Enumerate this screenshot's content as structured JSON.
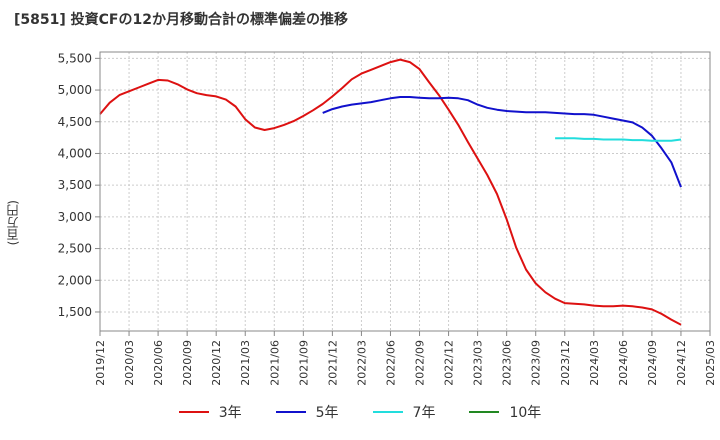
{
  "title": "[5851]  投資CFの12か月移動合計の標準偏差の推移",
  "ylabel": "(百万円)",
  "chart_data": {
    "type": "line",
    "ylim": [
      1200,
      5600
    ],
    "yticks": [
      1500,
      2000,
      2500,
      3000,
      3500,
      4000,
      4500,
      5000,
      5500
    ],
    "ytick_labels": [
      "1,500",
      "2,000",
      "2,500",
      "3,000",
      "3,500",
      "4,000",
      "4,500",
      "5,000",
      "5,500"
    ],
    "xticks": [
      "2019/12",
      "2020/03",
      "2020/06",
      "2020/09",
      "2020/12",
      "2021/03",
      "2021/06",
      "2021/09",
      "2021/12",
      "2022/03",
      "2022/06",
      "2022/09",
      "2022/12",
      "2023/03",
      "2023/06",
      "2023/09",
      "2023/12",
      "2024/03",
      "2024/06",
      "2024/09",
      "2024/12",
      "2025/03"
    ],
    "grid": true,
    "legend_position": "bottom",
    "series": [
      {
        "name": "3年",
        "color": "#dd1111",
        "values": [
          [
            "2019/12",
            4620
          ],
          [
            "2020/01",
            4800
          ],
          [
            "2020/02",
            4920
          ],
          [
            "2020/03",
            4980
          ],
          [
            "2020/04",
            5040
          ],
          [
            "2020/05",
            5100
          ],
          [
            "2020/06",
            5160
          ],
          [
            "2020/07",
            5150
          ],
          [
            "2020/08",
            5090
          ],
          [
            "2020/09",
            5010
          ],
          [
            "2020/10",
            4950
          ],
          [
            "2020/11",
            4920
          ],
          [
            "2020/12",
            4900
          ],
          [
            "2021/01",
            4850
          ],
          [
            "2021/02",
            4740
          ],
          [
            "2021/03",
            4540
          ],
          [
            "2021/04",
            4410
          ],
          [
            "2021/05",
            4370
          ],
          [
            "2021/06",
            4400
          ],
          [
            "2021/07",
            4450
          ],
          [
            "2021/08",
            4510
          ],
          [
            "2021/09",
            4590
          ],
          [
            "2021/10",
            4680
          ],
          [
            "2021/11",
            4780
          ],
          [
            "2021/12",
            4900
          ],
          [
            "2022/01",
            5030
          ],
          [
            "2022/02",
            5170
          ],
          [
            "2022/03",
            5260
          ],
          [
            "2022/04",
            5320
          ],
          [
            "2022/05",
            5380
          ],
          [
            "2022/06",
            5440
          ],
          [
            "2022/07",
            5480
          ],
          [
            "2022/08",
            5440
          ],
          [
            "2022/09",
            5330
          ],
          [
            "2022/10",
            5120
          ],
          [
            "2022/11",
            4920
          ],
          [
            "2022/12",
            4690
          ],
          [
            "2023/01",
            4450
          ],
          [
            "2023/02",
            4180
          ],
          [
            "2023/03",
            3920
          ],
          [
            "2023/04",
            3660
          ],
          [
            "2023/05",
            3360
          ],
          [
            "2023/06",
            2960
          ],
          [
            "2023/07",
            2510
          ],
          [
            "2023/08",
            2170
          ],
          [
            "2023/09",
            1950
          ],
          [
            "2023/10",
            1810
          ],
          [
            "2023/11",
            1710
          ],
          [
            "2023/12",
            1640
          ],
          [
            "2024/01",
            1630
          ],
          [
            "2024/02",
            1620
          ],
          [
            "2024/03",
            1600
          ],
          [
            "2024/04",
            1590
          ],
          [
            "2024/05",
            1590
          ],
          [
            "2024/06",
            1600
          ],
          [
            "2024/07",
            1590
          ],
          [
            "2024/08",
            1570
          ],
          [
            "2024/09",
            1540
          ],
          [
            "2024/10",
            1470
          ],
          [
            "2024/11",
            1380
          ],
          [
            "2024/12",
            1300
          ]
        ]
      },
      {
        "name": "5年",
        "color": "#1111cc",
        "values": [
          [
            "2021/11",
            4640
          ],
          [
            "2021/12",
            4700
          ],
          [
            "2022/01",
            4740
          ],
          [
            "2022/02",
            4770
          ],
          [
            "2022/03",
            4790
          ],
          [
            "2022/04",
            4810
          ],
          [
            "2022/05",
            4840
          ],
          [
            "2022/06",
            4870
          ],
          [
            "2022/07",
            4890
          ],
          [
            "2022/08",
            4890
          ],
          [
            "2022/09",
            4880
          ],
          [
            "2022/10",
            4870
          ],
          [
            "2022/11",
            4870
          ],
          [
            "2022/12",
            4880
          ],
          [
            "2023/01",
            4870
          ],
          [
            "2023/02",
            4840
          ],
          [
            "2023/03",
            4770
          ],
          [
            "2023/04",
            4720
          ],
          [
            "2023/05",
            4690
          ],
          [
            "2023/06",
            4670
          ],
          [
            "2023/07",
            4660
          ],
          [
            "2023/08",
            4650
          ],
          [
            "2023/09",
            4650
          ],
          [
            "2023/10",
            4650
          ],
          [
            "2023/11",
            4640
          ],
          [
            "2023/12",
            4630
          ],
          [
            "2024/01",
            4620
          ],
          [
            "2024/02",
            4620
          ],
          [
            "2024/03",
            4610
          ],
          [
            "2024/04",
            4580
          ],
          [
            "2024/05",
            4550
          ],
          [
            "2024/06",
            4520
          ],
          [
            "2024/07",
            4490
          ],
          [
            "2024/08",
            4410
          ],
          [
            "2024/09",
            4280
          ],
          [
            "2024/10",
            4080
          ],
          [
            "2024/11",
            3860
          ],
          [
            "2024/12",
            3470
          ]
        ]
      },
      {
        "name": "7年",
        "color": "#22dddd",
        "values": [
          [
            "2023/11",
            4240
          ],
          [
            "2023/12",
            4240
          ],
          [
            "2024/01",
            4240
          ],
          [
            "2024/02",
            4230
          ],
          [
            "2024/03",
            4230
          ],
          [
            "2024/04",
            4220
          ],
          [
            "2024/05",
            4220
          ],
          [
            "2024/06",
            4220
          ],
          [
            "2024/07",
            4210
          ],
          [
            "2024/08",
            4210
          ],
          [
            "2024/09",
            4200
          ],
          [
            "2024/10",
            4200
          ],
          [
            "2024/11",
            4200
          ],
          [
            "2024/12",
            4220
          ]
        ]
      },
      {
        "name": "10年",
        "color": "#228822",
        "values": []
      }
    ]
  }
}
